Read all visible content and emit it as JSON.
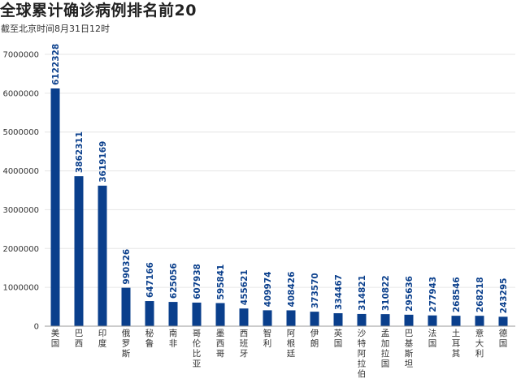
{
  "title": "全球累计确诊病例排名前20",
  "subtitle": "截至北京时间8月31日12时",
  "colors": {
    "bar": "#0a3f8c",
    "grid": "#e6e6e6",
    "axis": "#999999",
    "label": "#0a3f8c"
  },
  "chart_data": {
    "type": "bar",
    "title": "全球累计确诊病例排名前20",
    "subtitle": "截至北京时间8月31日12时",
    "xlabel": "",
    "ylabel": "",
    "ylim": [
      0,
      7000000
    ],
    "yticks": [
      0,
      1000000,
      2000000,
      3000000,
      4000000,
      5000000,
      6000000,
      7000000
    ],
    "grid": true,
    "categories": [
      "美国",
      "巴西",
      "印度",
      "俄罗斯",
      "秘鲁",
      "南非",
      "哥伦比亚",
      "墨西哥",
      "西班牙",
      "智利",
      "阿根廷",
      "伊朗",
      "英国",
      "沙特阿拉伯",
      "孟加拉国",
      "巴基斯坦",
      "法国",
      "土耳其",
      "意大利",
      "德国"
    ],
    "values": [
      6122328,
      3862311,
      3619169,
      990326,
      647166,
      625056,
      607938,
      595841,
      455621,
      409974,
      408426,
      373570,
      334467,
      314821,
      310822,
      295636,
      277943,
      268546,
      268218,
      243295
    ]
  }
}
